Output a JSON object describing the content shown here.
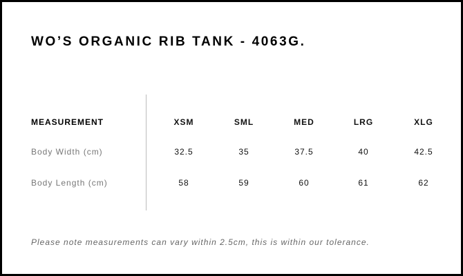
{
  "title": "WO’S ORGANIC RIB TANK - 4063G.",
  "table": {
    "header": [
      "MEASUREMENT",
      "XSM",
      "SML",
      "MED",
      "LRG",
      "XLG"
    ],
    "rows": [
      {
        "label": "Body Width (cm)",
        "values": [
          "32.5",
          "35",
          "37.5",
          "40",
          "42.5"
        ]
      },
      {
        "label": "Body Length (cm)",
        "values": [
          "58",
          "59",
          "60",
          "61",
          "62"
        ]
      }
    ]
  },
  "note": "Please note measurements can vary within 2.5cm, this is within our tolerance."
}
